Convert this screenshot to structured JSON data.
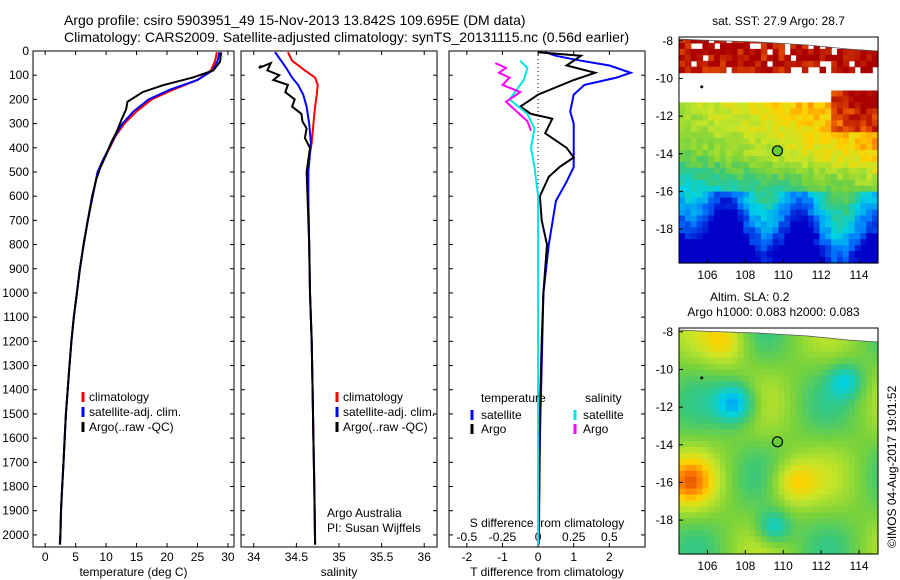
{
  "header": {
    "line1": "Argo profile: csiro 5903951_49 15-Nov-2013 13.842S 109.695E (DM data)",
    "line2": "Climatology: CARS2009. Satellite-adjusted climatology: synTS_20131115.nc (0.56d earlier)"
  },
  "colors": {
    "climatology": "#ff0000",
    "satellite": "#0000ff",
    "argo": "#000000",
    "sal_satellite": "#00e5e5",
    "sal_argo": "#ff00ff"
  },
  "credits": {
    "line1": "Argo Australia",
    "line2": "PI: Susan Wijffels"
  },
  "timestamp": "©IMOS 04-Aug-2017 19:01:52",
  "chart_data": [
    {
      "type": "line",
      "id": "temperature",
      "xlabel": "temperature (deg C)",
      "ylabel": "",
      "xlim": [
        -2,
        31
      ],
      "ylim": [
        2050,
        0
      ],
      "xticks": [
        0,
        5,
        10,
        15,
        20,
        25,
        30
      ],
      "yticks": [
        0,
        100,
        200,
        300,
        400,
        500,
        600,
        700,
        800,
        900,
        1000,
        1100,
        1200,
        1300,
        1400,
        1500,
        1600,
        1700,
        1800,
        1900,
        2000
      ],
      "legend": {
        "position": "lower-center",
        "entries": [
          "climatology",
          "satellite-adj. clim.",
          "Argo(..raw -QC)"
        ]
      },
      "series": [
        {
          "name": "climatology",
          "color": "#ff0000",
          "points": [
            [
              28.2,
              5
            ],
            [
              27.9,
              40
            ],
            [
              27.2,
              80
            ],
            [
              25.0,
              120
            ],
            [
              21.0,
              160
            ],
            [
              17.5,
              200
            ],
            [
              15.0,
              250
            ],
            [
              13.0,
              300
            ],
            [
              11.6,
              350
            ],
            [
              10.6,
              400
            ],
            [
              9.5,
              450
            ],
            [
              8.6,
              500
            ],
            [
              7.8,
              600
            ],
            [
              7.0,
              700
            ],
            [
              6.3,
              800
            ],
            [
              5.7,
              900
            ],
            [
              5.2,
              1000
            ],
            [
              4.7,
              1100
            ],
            [
              4.3,
              1200
            ],
            [
              4.0,
              1300
            ],
            [
              3.7,
              1400
            ],
            [
              3.4,
              1500
            ],
            [
              3.2,
              1600
            ],
            [
              3.0,
              1700
            ],
            [
              2.8,
              1800
            ],
            [
              2.6,
              1900
            ],
            [
              2.5,
              2000
            ],
            [
              2.4,
              2040
            ]
          ]
        },
        {
          "name": "satellite-adj. clim.",
          "color": "#0000ff",
          "points": [
            [
              28.6,
              5
            ],
            [
              28.3,
              40
            ],
            [
              27.5,
              80
            ],
            [
              25.0,
              120
            ],
            [
              20.5,
              160
            ],
            [
              17.0,
              200
            ],
            [
              14.5,
              250
            ],
            [
              12.7,
              300
            ],
            [
              11.5,
              350
            ],
            [
              10.5,
              400
            ],
            [
              9.5,
              450
            ],
            [
              8.6,
              500
            ],
            [
              7.8,
              600
            ],
            [
              7.0,
              700
            ],
            [
              6.3,
              800
            ],
            [
              5.7,
              900
            ],
            [
              5.2,
              1000
            ],
            [
              4.7,
              1100
            ],
            [
              4.3,
              1200
            ],
            [
              4.0,
              1300
            ],
            [
              3.7,
              1400
            ],
            [
              3.4,
              1500
            ],
            [
              3.2,
              1600
            ],
            [
              3.0,
              1700
            ],
            [
              2.8,
              1800
            ],
            [
              2.6,
              1900
            ],
            [
              2.5,
              2000
            ],
            [
              2.4,
              2040
            ]
          ]
        },
        {
          "name": "Argo(..raw -QC)",
          "color": "#000000",
          "points": [
            [
              28.9,
              5
            ],
            [
              28.7,
              45
            ],
            [
              27.6,
              80
            ],
            [
              24.2,
              110
            ],
            [
              19.5,
              140
            ],
            [
              16.0,
              170
            ],
            [
              13.5,
              210
            ],
            [
              13.3,
              240
            ],
            [
              12.6,
              280
            ],
            [
              11.8,
              330
            ],
            [
              10.8,
              380
            ],
            [
              10.0,
              430
            ],
            [
              9.1,
              480
            ],
            [
              8.4,
              530
            ],
            [
              7.7,
              600
            ],
            [
              7.0,
              700
            ],
            [
              6.3,
              800
            ],
            [
              5.7,
              900
            ],
            [
              5.2,
              1000
            ],
            [
              4.7,
              1100
            ],
            [
              4.3,
              1200
            ],
            [
              4.0,
              1300
            ],
            [
              3.7,
              1400
            ],
            [
              3.4,
              1500
            ],
            [
              3.2,
              1600
            ],
            [
              3.0,
              1700
            ],
            [
              2.8,
              1800
            ],
            [
              2.6,
              1900
            ],
            [
              2.5,
              2000
            ],
            [
              2.45,
              2040
            ]
          ]
        }
      ]
    },
    {
      "type": "line",
      "id": "salinity",
      "xlabel": "salinity",
      "ylabel": "",
      "xlim": [
        33.85,
        36.15
      ],
      "ylim": [
        2050,
        0
      ],
      "xticks": [
        34,
        34.5,
        35,
        35.5,
        36
      ],
      "legend": {
        "position": "lower-right",
        "entries": [
          "climatology",
          "satellite-adj. clim.",
          "Argo(..raw -QC)"
        ]
      },
      "series": [
        {
          "name": "climatology",
          "color": "#ff0000",
          "points": [
            [
              34.4,
              5
            ],
            [
              34.45,
              40
            ],
            [
              34.6,
              80
            ],
            [
              34.72,
              110
            ],
            [
              34.75,
              140
            ],
            [
              34.74,
              180
            ],
            [
              34.72,
              230
            ],
            [
              34.7,
              300
            ],
            [
              34.68,
              380
            ],
            [
              34.64,
              460
            ],
            [
              34.64,
              500
            ],
            [
              34.64,
              600
            ],
            [
              34.65,
              800
            ],
            [
              34.66,
              1000
            ],
            [
              34.68,
              1200
            ],
            [
              34.69,
              1400
            ],
            [
              34.7,
              1600
            ],
            [
              34.71,
              1800
            ],
            [
              34.72,
              2040
            ]
          ]
        },
        {
          "name": "satellite-adj. clim.",
          "color": "#0000ff",
          "points": [
            [
              34.25,
              5
            ],
            [
              34.32,
              40
            ],
            [
              34.38,
              70
            ],
            [
              34.45,
              110
            ],
            [
              34.52,
              140
            ],
            [
              34.58,
              180
            ],
            [
              34.62,
              230
            ],
            [
              34.65,
              300
            ],
            [
              34.67,
              380
            ],
            [
              34.65,
              460
            ],
            [
              34.64,
              500
            ],
            [
              34.64,
              600
            ],
            [
              34.65,
              800
            ],
            [
              34.66,
              1000
            ],
            [
              34.68,
              1200
            ],
            [
              34.69,
              1400
            ],
            [
              34.7,
              1600
            ],
            [
              34.71,
              1800
            ],
            [
              34.72,
              2040
            ]
          ]
        },
        {
          "name": "Argo(..raw -QC)",
          "color": "#000000",
          "points": [
            [
              34.09,
              60
            ],
            [
              34.06,
              70
            ],
            [
              34.2,
              50
            ],
            [
              34.16,
              80
            ],
            [
              34.3,
              100
            ],
            [
              34.23,
              120
            ],
            [
              34.4,
              140
            ],
            [
              34.37,
              170
            ],
            [
              34.48,
              200
            ],
            [
              34.45,
              230
            ],
            [
              34.56,
              260
            ],
            [
              34.57,
              290
            ],
            [
              34.62,
              320
            ],
            [
              34.6,
              360
            ],
            [
              34.66,
              400
            ],
            [
              34.64,
              450
            ],
            [
              34.62,
              500
            ],
            [
              34.63,
              600
            ],
            [
              34.65,
              800
            ],
            [
              34.66,
              1000
            ],
            [
              34.68,
              1200
            ],
            [
              34.69,
              1400
            ],
            [
              34.7,
              1600
            ],
            [
              34.71,
              1800
            ],
            [
              34.72,
              2040
            ]
          ]
        }
      ]
    },
    {
      "type": "line",
      "id": "difference",
      "xlabel": "T difference from climatology",
      "xlabel_top": "S difference from climatology",
      "xlim": [
        -2.5,
        3.0
      ],
      "ylim": [
        2050,
        0
      ],
      "xticks": [
        -2,
        -1,
        0,
        1,
        2
      ],
      "xticks_s_values": [
        -0.5,
        -0.25,
        0,
        0.25,
        0.5
      ],
      "xticks_s_labels": [
        "-0.5",
        "-0.25",
        "0",
        "0.25",
        "0.5"
      ],
      "legend_temperature": {
        "title": "temperature",
        "entries": [
          "satellite",
          "Argo"
        ]
      },
      "legend_salinity": {
        "title": "salinity",
        "entries": [
          "satellite",
          "Argo"
        ]
      },
      "series": [
        {
          "name": "temperature satellite",
          "color": "#0000ff",
          "points": [
            [
              0.2,
              5
            ],
            [
              0.5,
              20
            ],
            [
              1.2,
              40
            ],
            [
              2.0,
              60
            ],
            [
              2.6,
              90
            ],
            [
              2.2,
              110
            ],
            [
              1.3,
              140
            ],
            [
              1.0,
              180
            ],
            [
              0.9,
              250
            ],
            [
              1.0,
              300
            ],
            [
              1.0,
              400
            ],
            [
              1.0,
              480
            ],
            [
              0.8,
              540
            ],
            [
              0.5,
              620
            ],
            [
              0.3,
              800
            ],
            [
              0.15,
              1000
            ],
            [
              0.1,
              1300
            ],
            [
              0.05,
              1600
            ],
            [
              0.02,
              2040
            ]
          ]
        },
        {
          "name": "temperature Argo",
          "color": "#000000",
          "points": [
            [
              0.0,
              5
            ],
            [
              1.2,
              20
            ],
            [
              0.8,
              60
            ],
            [
              1.6,
              90
            ],
            [
              1.0,
              120
            ],
            [
              0.0,
              180
            ],
            [
              -0.2,
              200
            ],
            [
              -0.5,
              230
            ],
            [
              -0.2,
              260
            ],
            [
              0.4,
              280
            ],
            [
              0.2,
              340
            ],
            [
              0.8,
              400
            ],
            [
              1.0,
              440
            ],
            [
              0.6,
              480
            ],
            [
              0.3,
              520
            ],
            [
              0.05,
              600
            ],
            [
              0.1,
              700
            ],
            [
              0.25,
              800
            ],
            [
              0.15,
              1000
            ],
            [
              0.1,
              1200
            ],
            [
              0.05,
              1500
            ],
            [
              0.03,
              1800
            ],
            [
              0.01,
              2040
            ]
          ]
        },
        {
          "name": "salinity satellite",
          "color": "#00e5e5",
          "points": [
            [
              -0.5,
              40
            ],
            [
              -0.3,
              70
            ],
            [
              -0.4,
              120
            ],
            [
              -0.6,
              160
            ],
            [
              -0.8,
              200
            ],
            [
              -0.3,
              260
            ],
            [
              -0.1,
              320
            ],
            [
              -0.2,
              400
            ],
            [
              -0.1,
              480
            ],
            [
              0.0,
              600
            ],
            [
              0.0,
              1000
            ],
            [
              0.0,
              1500
            ],
            [
              0.0,
              2040
            ]
          ]
        },
        {
          "name": "salinity Argo",
          "color": "#ff00ff",
          "points": [
            [
              -1.2,
              50
            ],
            [
              -0.9,
              70
            ],
            [
              -1.1,
              90
            ],
            [
              -0.8,
              110
            ],
            [
              -1.0,
              140
            ],
            [
              -0.5,
              170
            ],
            [
              -0.9,
              210
            ],
            [
              -0.6,
              250
            ],
            [
              -0.3,
              290
            ],
            [
              -0.2,
              330
            ]
          ]
        }
      ]
    },
    {
      "type": "heatmap",
      "id": "sst-map",
      "title": "sat. SST: 27.9 Argo: 28.7",
      "xlim": [
        104.5,
        115
      ],
      "ylim": [
        -19.8,
        -7.8
      ],
      "xticks": [
        106,
        108,
        110,
        112,
        114
      ],
      "yticks": [
        -8,
        -10,
        -12,
        -14,
        -16,
        -18
      ],
      "argo_position": {
        "lon": 109.695,
        "lat": -13.842
      }
    },
    {
      "type": "heatmap",
      "id": "sla-map",
      "title": "Altim. SLA: 0.2",
      "subtitle": "Argo h1000: 0.083 h2000: 0.083",
      "xlim": [
        104.5,
        115
      ],
      "ylim": [
        -19.8,
        -7.8
      ],
      "xticks": [
        106,
        108,
        110,
        112,
        114
      ],
      "yticks": [
        -8,
        -10,
        -12,
        -14,
        -16,
        -18
      ],
      "argo_position": {
        "lon": 109.695,
        "lat": -13.842
      }
    }
  ]
}
